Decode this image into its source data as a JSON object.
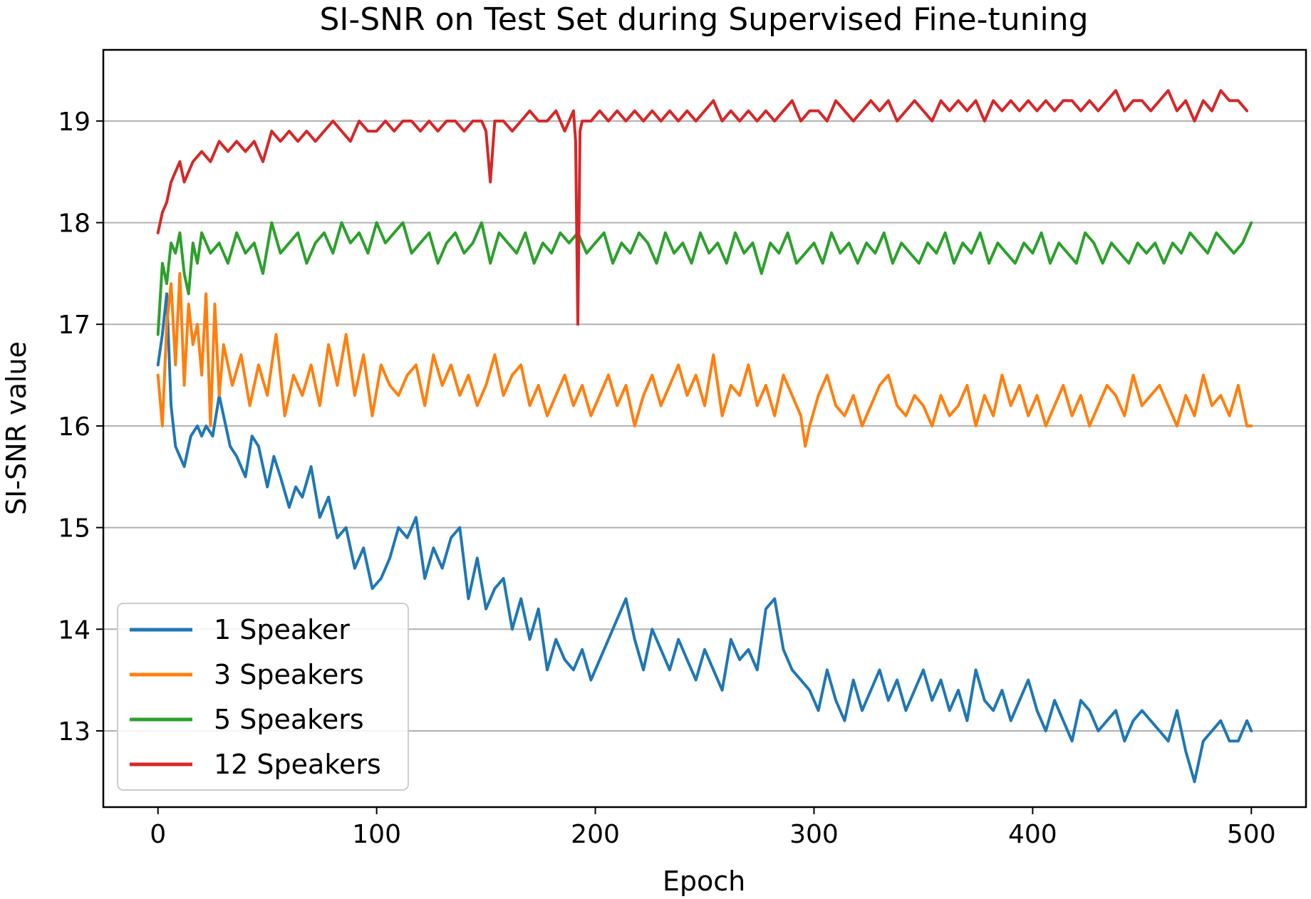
{
  "chart_data": {
    "type": "line",
    "title": "SI-SNR on Test Set during Supervised Fine-tuning",
    "xlabel": "Epoch",
    "ylabel": "SI-SNR value",
    "xlim": [
      -25,
      525
    ],
    "ylim": [
      12.25,
      19.7
    ],
    "xticks": [
      0,
      100,
      200,
      300,
      400,
      500
    ],
    "yticks": [
      13,
      14,
      15,
      16,
      17,
      18,
      19
    ],
    "grid": "horizontal",
    "legend_position": "lower-left",
    "series": [
      {
        "name": "1 Speaker",
        "color": "#1f77b4",
        "x": [
          0,
          2,
          4,
          6,
          8,
          10,
          12,
          15,
          18,
          20,
          22,
          25,
          28,
          30,
          33,
          36,
          40,
          43,
          46,
          50,
          53,
          56,
          60,
          63,
          66,
          70,
          74,
          78,
          82,
          86,
          90,
          94,
          98,
          102,
          106,
          110,
          114,
          118,
          122,
          126,
          130,
          134,
          138,
          142,
          146,
          150,
          154,
          158,
          162,
          166,
          170,
          174,
          178,
          182,
          186,
          190,
          194,
          198,
          202,
          206,
          210,
          214,
          218,
          222,
          226,
          230,
          234,
          238,
          242,
          246,
          250,
          254,
          258,
          262,
          266,
          270,
          274,
          278,
          282,
          286,
          290,
          294,
          298,
          302,
          306,
          310,
          314,
          318,
          322,
          326,
          330,
          334,
          338,
          342,
          346,
          350,
          354,
          358,
          362,
          366,
          370,
          374,
          378,
          382,
          386,
          390,
          394,
          398,
          402,
          406,
          410,
          414,
          418,
          422,
          426,
          430,
          434,
          438,
          442,
          446,
          450,
          454,
          458,
          462,
          466,
          470,
          474,
          478,
          482,
          486,
          490,
          494,
          498,
          500
        ],
        "values": [
          16.6,
          16.9,
          17.3,
          16.2,
          15.8,
          15.7,
          15.6,
          15.9,
          16.0,
          15.9,
          16.0,
          15.9,
          16.3,
          16.1,
          15.8,
          15.7,
          15.5,
          15.9,
          15.8,
          15.4,
          15.7,
          15.5,
          15.2,
          15.4,
          15.3,
          15.6,
          15.1,
          15.3,
          14.9,
          15.0,
          14.6,
          14.8,
          14.4,
          14.5,
          14.7,
          15.0,
          14.9,
          15.1,
          14.5,
          14.8,
          14.6,
          14.9,
          15.0,
          14.3,
          14.7,
          14.2,
          14.4,
          14.5,
          14.0,
          14.3,
          13.9,
          14.2,
          13.6,
          13.9,
          13.7,
          13.6,
          13.8,
          13.5,
          13.7,
          13.9,
          14.1,
          14.3,
          13.9,
          13.6,
          14.0,
          13.8,
          13.6,
          13.9,
          13.7,
          13.5,
          13.8,
          13.6,
          13.4,
          13.9,
          13.7,
          13.8,
          13.6,
          14.2,
          14.3,
          13.8,
          13.6,
          13.5,
          13.4,
          13.2,
          13.6,
          13.3,
          13.1,
          13.5,
          13.2,
          13.4,
          13.6,
          13.3,
          13.5,
          13.2,
          13.4,
          13.6,
          13.3,
          13.5,
          13.2,
          13.4,
          13.1,
          13.6,
          13.3,
          13.2,
          13.4,
          13.1,
          13.3,
          13.5,
          13.2,
          13.0,
          13.3,
          13.1,
          12.9,
          13.3,
          13.2,
          13.0,
          13.1,
          13.2,
          12.9,
          13.1,
          13.2,
          13.1,
          13.0,
          12.9,
          13.2,
          12.8,
          12.5,
          12.9,
          13.0,
          13.1,
          12.9,
          12.9,
          13.1,
          13.0
        ]
      },
      {
        "name": "3 Speakers",
        "color": "#ff7f0e",
        "x": [
          0,
          2,
          4,
          6,
          8,
          10,
          12,
          14,
          16,
          18,
          20,
          22,
          24,
          26,
          28,
          30,
          34,
          38,
          42,
          46,
          50,
          54,
          58,
          62,
          66,
          70,
          74,
          78,
          82,
          86,
          90,
          94,
          98,
          102,
          106,
          110,
          114,
          118,
          122,
          126,
          130,
          134,
          138,
          142,
          146,
          150,
          154,
          158,
          162,
          166,
          170,
          174,
          178,
          182,
          186,
          190,
          194,
          198,
          202,
          206,
          210,
          214,
          218,
          222,
          226,
          230,
          234,
          238,
          242,
          246,
          250,
          254,
          258,
          262,
          266,
          270,
          274,
          278,
          282,
          286,
          290,
          294,
          296,
          298,
          302,
          306,
          310,
          314,
          318,
          322,
          326,
          330,
          334,
          338,
          342,
          346,
          350,
          354,
          358,
          362,
          366,
          370,
          374,
          378,
          382,
          386,
          390,
          394,
          398,
          402,
          406,
          410,
          414,
          418,
          422,
          426,
          430,
          434,
          438,
          442,
          446,
          450,
          454,
          458,
          462,
          466,
          470,
          474,
          478,
          482,
          486,
          490,
          494,
          498,
          500
        ],
        "values": [
          16.5,
          16.0,
          17.0,
          17.4,
          16.6,
          17.5,
          16.4,
          17.2,
          16.8,
          17.0,
          16.5,
          17.3,
          16.0,
          17.2,
          16.3,
          16.8,
          16.4,
          16.7,
          16.2,
          16.6,
          16.3,
          16.9,
          16.1,
          16.5,
          16.3,
          16.6,
          16.2,
          16.8,
          16.4,
          16.9,
          16.3,
          16.7,
          16.1,
          16.6,
          16.4,
          16.3,
          16.5,
          16.6,
          16.2,
          16.7,
          16.4,
          16.6,
          16.3,
          16.5,
          16.2,
          16.4,
          16.7,
          16.3,
          16.5,
          16.6,
          16.2,
          16.4,
          16.1,
          16.3,
          16.5,
          16.2,
          16.4,
          16.1,
          16.3,
          16.5,
          16.2,
          16.4,
          16.0,
          16.3,
          16.5,
          16.2,
          16.4,
          16.6,
          16.3,
          16.5,
          16.2,
          16.7,
          16.1,
          16.4,
          16.3,
          16.6,
          16.2,
          16.4,
          16.1,
          16.5,
          16.3,
          16.1,
          15.8,
          16.0,
          16.3,
          16.5,
          16.2,
          16.1,
          16.3,
          16.0,
          16.2,
          16.4,
          16.5,
          16.2,
          16.1,
          16.3,
          16.2,
          16.0,
          16.3,
          16.1,
          16.2,
          16.4,
          16.0,
          16.3,
          16.1,
          16.5,
          16.2,
          16.4,
          16.1,
          16.3,
          16.0,
          16.2,
          16.4,
          16.1,
          16.3,
          16.0,
          16.2,
          16.4,
          16.3,
          16.1,
          16.5,
          16.2,
          16.3,
          16.4,
          16.2,
          16.0,
          16.3,
          16.1,
          16.5,
          16.2,
          16.3,
          16.1,
          16.4,
          16.0,
          16.0
        ]
      },
      {
        "name": "5 Speakers",
        "color": "#2ca02c",
        "x": [
          0,
          2,
          4,
          6,
          8,
          10,
          12,
          14,
          16,
          18,
          20,
          24,
          28,
          32,
          36,
          40,
          44,
          48,
          52,
          56,
          60,
          64,
          68,
          72,
          76,
          80,
          84,
          88,
          92,
          96,
          100,
          104,
          108,
          112,
          116,
          120,
          124,
          128,
          132,
          136,
          140,
          144,
          148,
          152,
          156,
          160,
          164,
          168,
          172,
          176,
          180,
          184,
          188,
          192,
          196,
          200,
          204,
          208,
          212,
          216,
          220,
          224,
          228,
          232,
          236,
          240,
          244,
          248,
          252,
          256,
          260,
          264,
          268,
          272,
          276,
          280,
          284,
          288,
          292,
          296,
          300,
          304,
          308,
          312,
          316,
          320,
          324,
          328,
          332,
          336,
          340,
          344,
          348,
          352,
          356,
          360,
          364,
          368,
          372,
          376,
          380,
          384,
          388,
          392,
          396,
          400,
          404,
          408,
          412,
          416,
          420,
          424,
          428,
          432,
          436,
          440,
          444,
          448,
          452,
          456,
          460,
          464,
          468,
          472,
          476,
          480,
          484,
          488,
          492,
          496,
          500
        ],
        "values": [
          16.9,
          17.6,
          17.4,
          17.8,
          17.7,
          17.9,
          17.5,
          17.3,
          17.8,
          17.6,
          17.9,
          17.7,
          17.8,
          17.6,
          17.9,
          17.7,
          17.8,
          17.5,
          18.0,
          17.7,
          17.8,
          17.9,
          17.6,
          17.8,
          17.9,
          17.7,
          18.0,
          17.8,
          17.9,
          17.7,
          18.0,
          17.8,
          17.9,
          18.0,
          17.7,
          17.8,
          17.9,
          17.6,
          17.8,
          17.9,
          17.7,
          17.8,
          18.0,
          17.6,
          17.9,
          17.8,
          17.7,
          17.9,
          17.6,
          17.8,
          17.7,
          17.9,
          17.8,
          17.9,
          17.7,
          17.8,
          17.9,
          17.6,
          17.8,
          17.7,
          17.9,
          17.8,
          17.6,
          17.9,
          17.7,
          17.8,
          17.6,
          17.9,
          17.7,
          17.8,
          17.6,
          17.9,
          17.7,
          17.8,
          17.5,
          17.8,
          17.7,
          17.9,
          17.6,
          17.7,
          17.8,
          17.6,
          17.9,
          17.7,
          17.8,
          17.6,
          17.8,
          17.7,
          17.9,
          17.6,
          17.8,
          17.7,
          17.6,
          17.8,
          17.7,
          17.9,
          17.6,
          17.8,
          17.7,
          17.9,
          17.6,
          17.8,
          17.7,
          17.6,
          17.8,
          17.7,
          17.9,
          17.6,
          17.8,
          17.7,
          17.6,
          17.9,
          17.8,
          17.6,
          17.8,
          17.7,
          17.6,
          17.8,
          17.7,
          17.8,
          17.6,
          17.8,
          17.7,
          17.9,
          17.8,
          17.7,
          17.9,
          17.8,
          17.7,
          17.8,
          18.0
        ]
      },
      {
        "name": "12 Speakers",
        "color": "#d62728",
        "x": [
          0,
          2,
          4,
          6,
          8,
          10,
          12,
          16,
          20,
          24,
          28,
          32,
          36,
          40,
          44,
          48,
          52,
          56,
          60,
          64,
          68,
          72,
          76,
          80,
          84,
          88,
          92,
          96,
          100,
          104,
          108,
          112,
          116,
          120,
          124,
          128,
          132,
          136,
          140,
          144,
          148,
          150,
          152,
          154,
          158,
          162,
          166,
          170,
          174,
          178,
          182,
          186,
          190,
          191,
          192,
          193,
          194,
          198,
          202,
          206,
          210,
          214,
          218,
          222,
          226,
          230,
          234,
          238,
          242,
          246,
          250,
          254,
          258,
          262,
          266,
          270,
          274,
          278,
          282,
          286,
          290,
          294,
          298,
          302,
          306,
          310,
          314,
          318,
          322,
          326,
          330,
          334,
          338,
          342,
          346,
          350,
          354,
          358,
          362,
          366,
          370,
          374,
          378,
          382,
          386,
          390,
          394,
          398,
          402,
          406,
          410,
          414,
          418,
          422,
          426,
          430,
          434,
          438,
          442,
          446,
          450,
          454,
          458,
          462,
          466,
          470,
          474,
          478,
          482,
          486,
          490,
          494,
          498
        ],
        "values": [
          17.9,
          18.1,
          18.2,
          18.4,
          18.5,
          18.6,
          18.4,
          18.6,
          18.7,
          18.6,
          18.8,
          18.7,
          18.8,
          18.7,
          18.8,
          18.6,
          18.9,
          18.8,
          18.9,
          18.8,
          18.9,
          18.8,
          18.9,
          19.0,
          18.9,
          18.8,
          19.0,
          18.9,
          18.9,
          19.0,
          18.9,
          19.0,
          19.0,
          18.9,
          19.0,
          18.9,
          19.0,
          19.0,
          18.9,
          19.0,
          19.0,
          18.9,
          18.4,
          19.0,
          19.0,
          18.9,
          19.0,
          19.1,
          19.0,
          19.0,
          19.1,
          18.9,
          19.1,
          18.8,
          17.0,
          18.9,
          19.0,
          19.0,
          19.1,
          19.0,
          19.1,
          19.0,
          19.1,
          19.0,
          19.1,
          19.0,
          19.1,
          19.0,
          19.1,
          19.0,
          19.1,
          19.2,
          19.0,
          19.1,
          19.0,
          19.1,
          19.0,
          19.1,
          19.0,
          19.1,
          19.2,
          19.0,
          19.1,
          19.1,
          19.0,
          19.2,
          19.1,
          19.0,
          19.1,
          19.2,
          19.1,
          19.2,
          19.0,
          19.1,
          19.2,
          19.1,
          19.0,
          19.2,
          19.1,
          19.2,
          19.1,
          19.2,
          19.0,
          19.2,
          19.1,
          19.2,
          19.1,
          19.2,
          19.1,
          19.2,
          19.1,
          19.2,
          19.2,
          19.1,
          19.2,
          19.1,
          19.2,
          19.3,
          19.1,
          19.2,
          19.2,
          19.1,
          19.2,
          19.3,
          19.1,
          19.2,
          19.0,
          19.2,
          19.1,
          19.3,
          19.2,
          19.2,
          19.1
        ]
      }
    ]
  }
}
